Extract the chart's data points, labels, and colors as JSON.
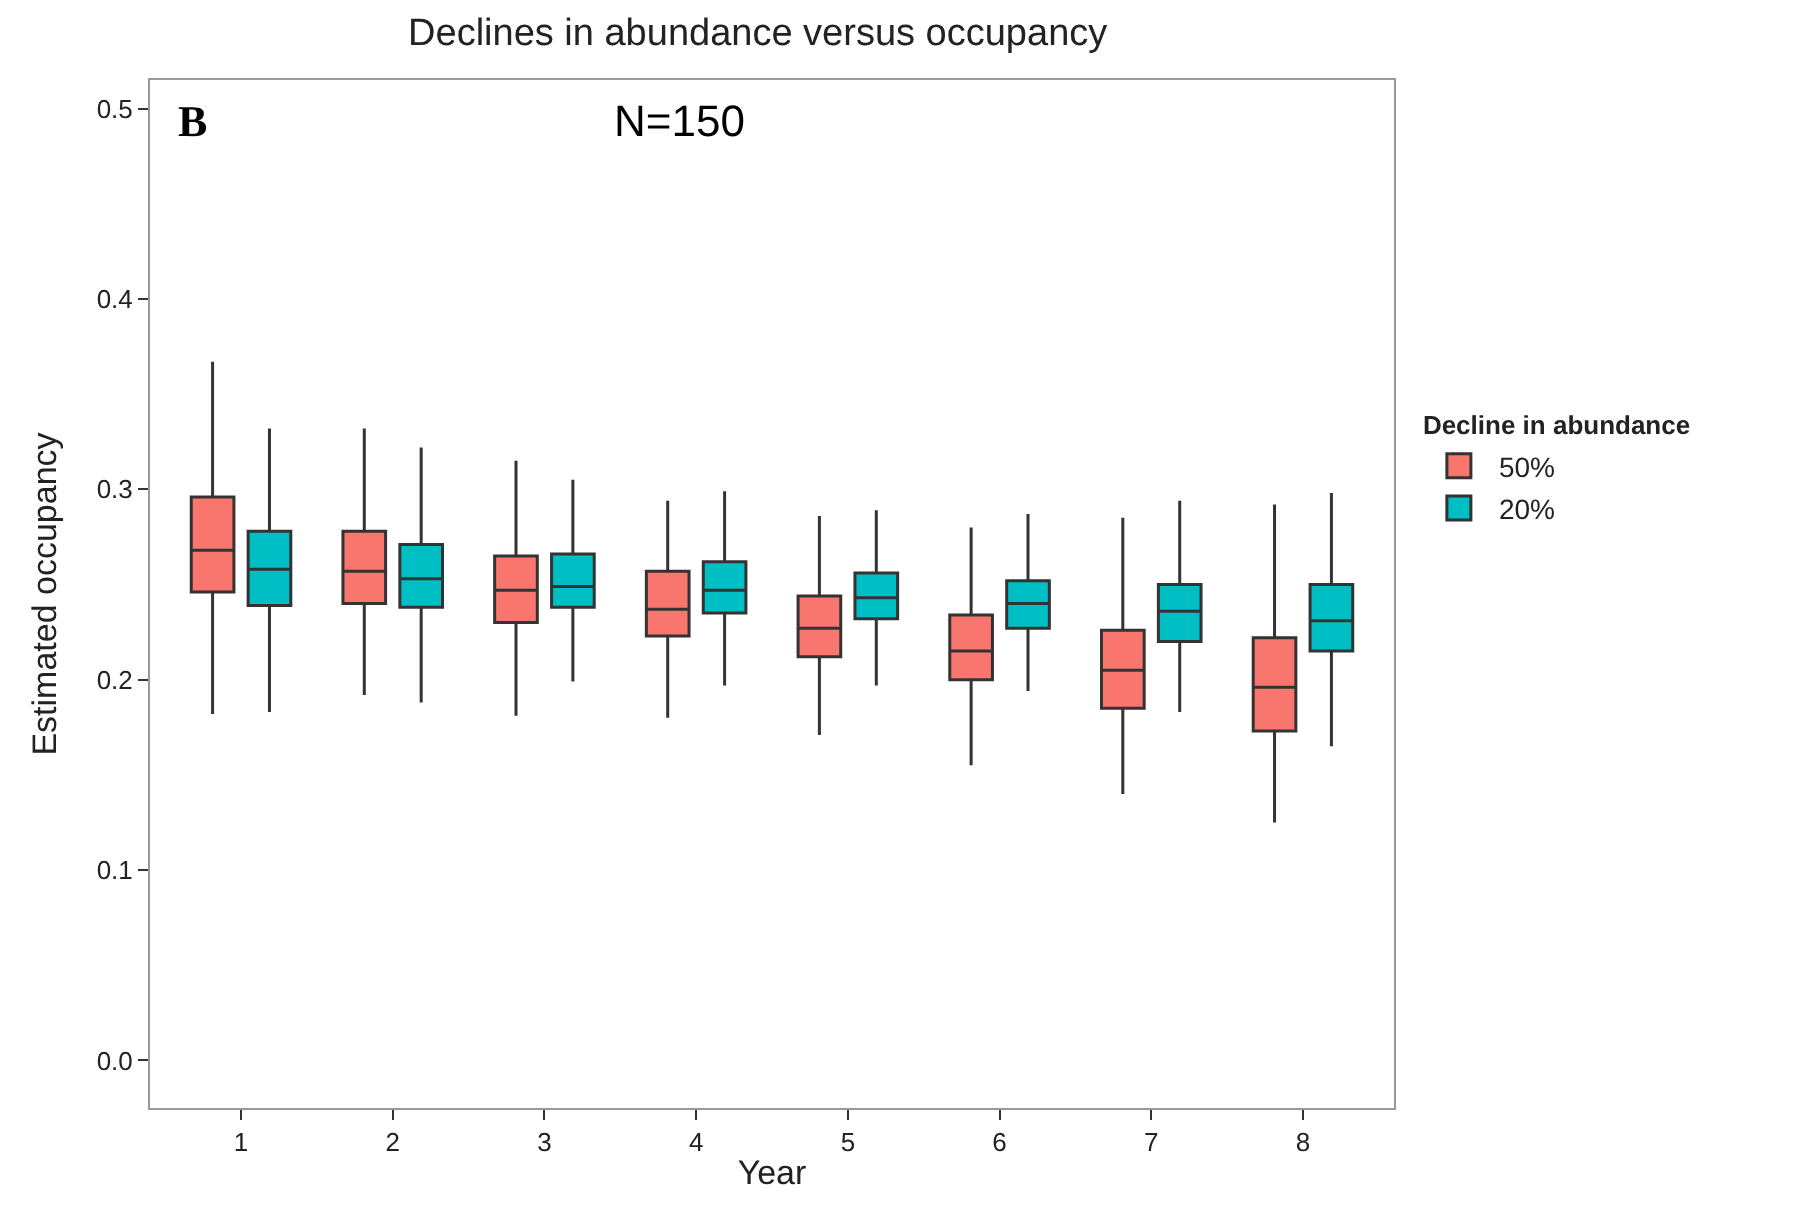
{
  "chart_data": {
    "type": "box",
    "title": "Declines in abundance versus occupancy",
    "xlabel": "Year",
    "ylabel": "Estimated occupancy",
    "legend_title": "Decline in abundance",
    "categories": [
      "1",
      "2",
      "3",
      "4",
      "5",
      "6",
      "7",
      "8"
    ],
    "ylim": [
      -0.025,
      0.515
    ],
    "yticks": [
      {
        "value": 0,
        "label": "0.0"
      },
      0.1,
      0.2,
      0.3,
      0.4,
      0.5
    ],
    "legend": "right",
    "annotations": [
      "B",
      "N=150"
    ],
    "series": [
      {
        "name": "50%",
        "color": "#f8766d",
        "boxes": [
          {
            "low": 0.182,
            "q1": 0.246,
            "median": 0.268,
            "q3": 0.296,
            "high": 0.367
          },
          {
            "low": 0.192,
            "q1": 0.24,
            "median": 0.257,
            "q3": 0.278,
            "high": 0.332
          },
          {
            "low": 0.181,
            "q1": 0.23,
            "median": 0.247,
            "q3": 0.265,
            "high": 0.315
          },
          {
            "low": 0.18,
            "q1": 0.223,
            "median": 0.237,
            "q3": 0.257,
            "high": 0.294
          },
          {
            "low": 0.171,
            "q1": 0.212,
            "median": 0.227,
            "q3": 0.244,
            "high": 0.286
          },
          {
            "low": 0.155,
            "q1": 0.2,
            "median": 0.215,
            "q3": 0.234,
            "high": 0.28
          },
          {
            "low": 0.14,
            "q1": 0.185,
            "median": 0.205,
            "q3": 0.226,
            "high": 0.285
          },
          {
            "low": 0.125,
            "q1": 0.173,
            "median": 0.196,
            "q3": 0.222,
            "high": 0.292
          }
        ]
      },
      {
        "name": "20%",
        "color": "#00bfc4",
        "boxes": [
          {
            "low": 0.183,
            "q1": 0.239,
            "median": 0.258,
            "q3": 0.278,
            "high": 0.332
          },
          {
            "low": 0.188,
            "q1": 0.238,
            "median": 0.253,
            "q3": 0.271,
            "high": 0.322
          },
          {
            "low": 0.199,
            "q1": 0.238,
            "median": 0.249,
            "q3": 0.266,
            "high": 0.305
          },
          {
            "low": 0.197,
            "q1": 0.235,
            "median": 0.247,
            "q3": 0.262,
            "high": 0.299
          },
          {
            "low": 0.197,
            "q1": 0.232,
            "median": 0.243,
            "q3": 0.256,
            "high": 0.289
          },
          {
            "low": 0.194,
            "q1": 0.227,
            "median": 0.24,
            "q3": 0.252,
            "high": 0.287
          },
          {
            "low": 0.183,
            "q1": 0.22,
            "median": 0.236,
            "q3": 0.25,
            "high": 0.294
          },
          {
            "low": 0.165,
            "q1": 0.215,
            "median": 0.231,
            "q3": 0.25,
            "high": 0.298
          }
        ]
      }
    ]
  }
}
